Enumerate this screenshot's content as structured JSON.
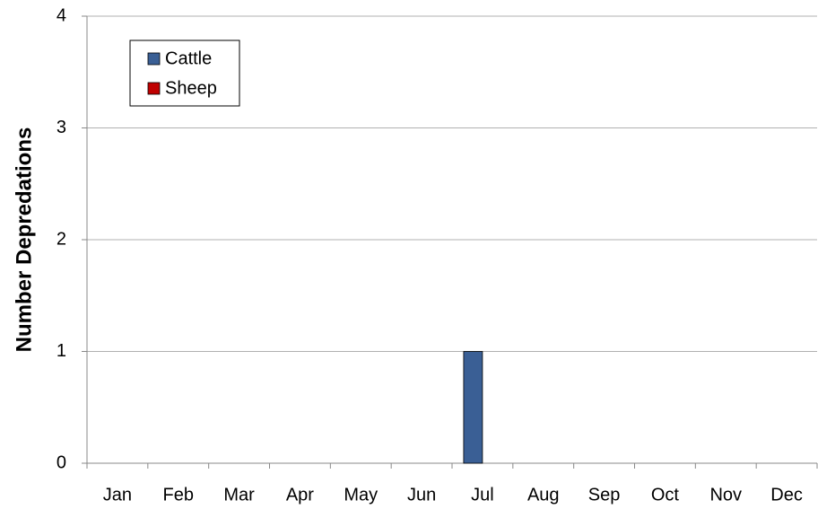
{
  "chart_data": {
    "type": "bar",
    "y_label": "Number Depredations",
    "categories": [
      "Jan",
      "Feb",
      "Mar",
      "Apr",
      "May",
      "Jun",
      "Jul",
      "Aug",
      "Sep",
      "Oct",
      "Nov",
      "Dec"
    ],
    "series": [
      {
        "name": "Cattle",
        "color": "#3a5f95",
        "values": [
          0,
          0,
          0,
          0,
          0,
          0,
          1,
          0,
          0,
          0,
          0,
          0
        ]
      },
      {
        "name": "Sheep",
        "color": "#c00000",
        "values": [
          0,
          0,
          0,
          0,
          0,
          0,
          0,
          0,
          0,
          0,
          0,
          0
        ]
      }
    ],
    "ylim": [
      0,
      4
    ],
    "yticks": [
      0,
      1,
      2,
      3,
      4
    ],
    "grid": true,
    "legend": "upper left"
  }
}
